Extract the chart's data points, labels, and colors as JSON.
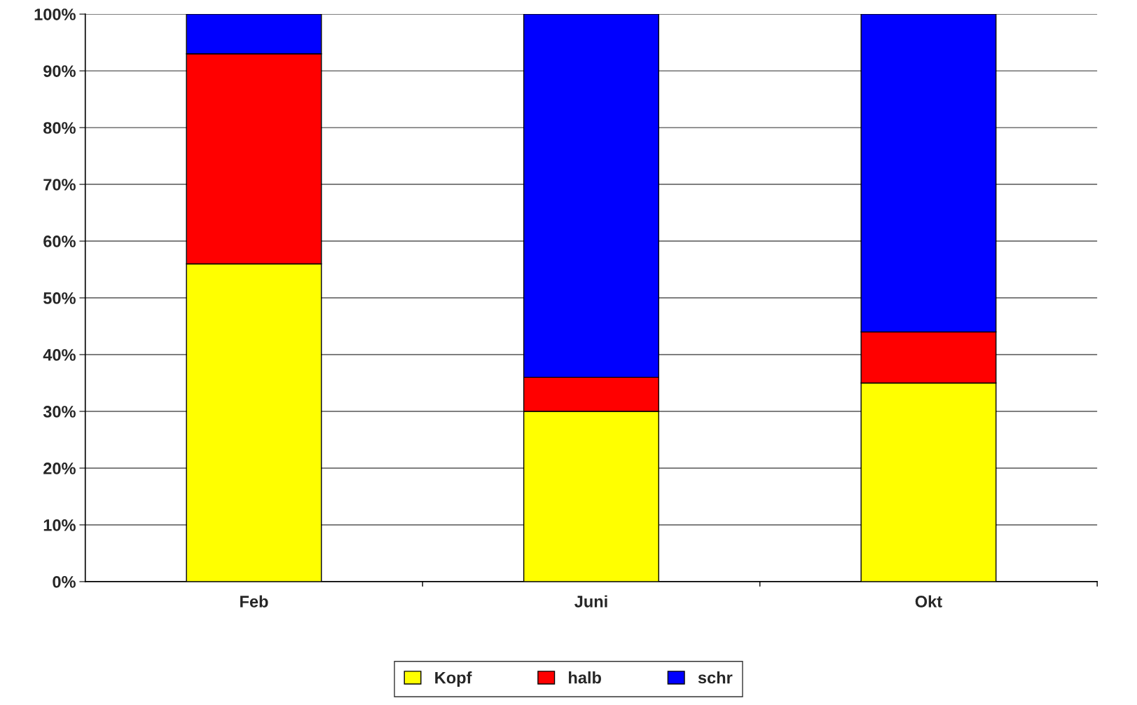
{
  "chart_data": {
    "type": "bar",
    "stacked": true,
    "categories": [
      "Feb",
      "Juni",
      "Okt"
    ],
    "series": [
      {
        "name": "Kopf",
        "color": "#ffff00",
        "values": [
          56,
          30,
          35
        ]
      },
      {
        "name": "halb",
        "color": "#ff0000",
        "values": [
          37,
          6,
          9
        ]
      },
      {
        "name": "schr",
        "color": "#0000ff",
        "values": [
          7,
          64,
          56
        ]
      }
    ],
    "ylim": [
      0,
      100
    ],
    "yticks": [
      {
        "value": 0,
        "label": "0%"
      },
      {
        "value": 10,
        "label": "10%"
      },
      {
        "value": 20,
        "label": "20%"
      },
      {
        "value": 30,
        "label": "30%"
      },
      {
        "value": 40,
        "label": "40%"
      },
      {
        "value": 50,
        "label": "50%"
      },
      {
        "value": 60,
        "label": "60%"
      },
      {
        "value": 70,
        "label": "70%"
      },
      {
        "value": 80,
        "label": "80%"
      },
      {
        "value": 90,
        "label": "90%"
      },
      {
        "value": 100,
        "label": "100%"
      }
    ],
    "grid": "y",
    "legend": "bottom"
  }
}
